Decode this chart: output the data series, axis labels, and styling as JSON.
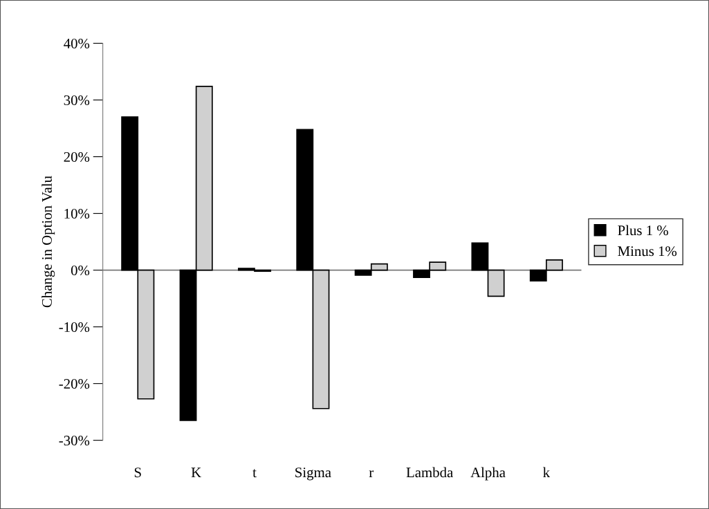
{
  "chart_data": {
    "type": "bar",
    "ylabel": "Change in Option Valu",
    "categories": [
      "S",
      "K",
      "t",
      "Sigma",
      "r",
      "Lambda",
      "Alpha",
      "k"
    ],
    "series": [
      {
        "name": "Plus 1 %",
        "color": "#000000",
        "values": [
          27.0,
          -26.5,
          0.3,
          24.8,
          -0.9,
          -1.3,
          4.8,
          -1.9
        ]
      },
      {
        "name": "Minus 1%",
        "color": "#d0d0d0",
        "values": [
          -22.7,
          32.4,
          -0.2,
          -24.4,
          1.1,
          1.4,
          -4.6,
          1.8
        ]
      }
    ],
    "ylim": [
      -30,
      40
    ],
    "yticks": [
      {
        "value": -30,
        "label": "-30%"
      },
      {
        "value": -20,
        "label": "-20%"
      },
      {
        "value": -10,
        "label": "-10%"
      },
      {
        "value": 0,
        "label": "0%"
      },
      {
        "value": 10,
        "label": "10%"
      },
      {
        "value": 20,
        "label": "20%"
      },
      {
        "value": 30,
        "label": "30%"
      },
      {
        "value": 40,
        "label": "40%"
      }
    ],
    "legend": "right"
  }
}
